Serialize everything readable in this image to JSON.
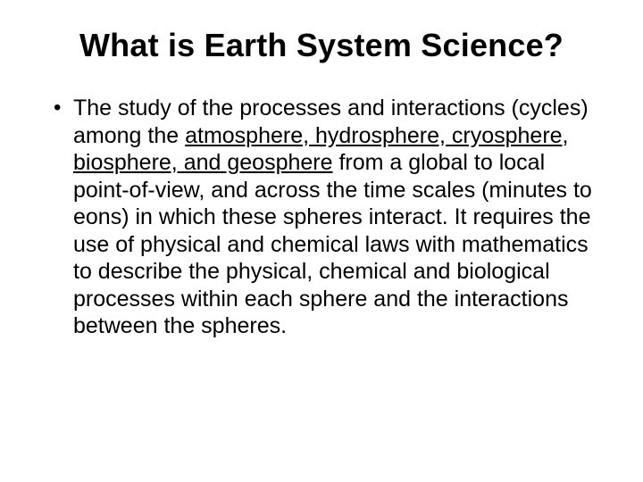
{
  "slide": {
    "title": "What is Earth System Science?",
    "bullet": {
      "pre": "The study of the processes and interactions (cycles) among the ",
      "underlined": "atmosphere, hydrosphere, cryosphere, biosphere, and geosphere",
      "post": " from a global to local point-of-view, and across the time scales (minutes to eons) in which these spheres interact. It requires the use of physical and chemical laws with mathematics to describe the physical, chemical and biological processes within each sphere and the interactions between the spheres."
    }
  },
  "style": {
    "background_color": "#ffffff",
    "text_color": "#000000",
    "title_fontsize": 36,
    "title_weight": "bold",
    "body_fontsize": 25,
    "body_line_height": 1.22,
    "font_family": "Arial"
  }
}
